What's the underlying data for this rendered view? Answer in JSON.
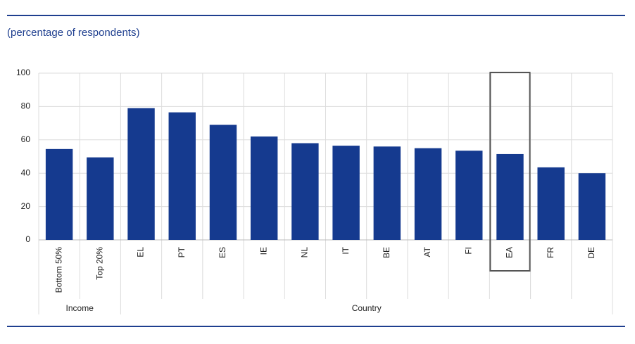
{
  "chart_data": {
    "type": "bar",
    "subtitle": "(percentage of respondents)",
    "categories": [
      "Bottom 50%",
      "Top 20%",
      "EL",
      "PT",
      "ES",
      "IE",
      "NL",
      "IT",
      "BE",
      "AT",
      "FI",
      "EA",
      "FR",
      "DE"
    ],
    "category_groups": [
      "Income",
      "Income",
      "Country",
      "Country",
      "Country",
      "Country",
      "Country",
      "Country",
      "Country",
      "Country",
      "Country",
      "Country",
      "Country",
      "Country"
    ],
    "values": [
      54.5,
      49.5,
      79,
      76.5,
      69,
      62,
      58,
      56.5,
      56,
      55,
      53.5,
      51.5,
      43.5,
      40
    ],
    "color": "#153a8f",
    "highlight": "EA",
    "ylim": [
      0,
      100
    ],
    "yticks": [
      0,
      20,
      40,
      60,
      80,
      100
    ],
    "grid": true
  }
}
